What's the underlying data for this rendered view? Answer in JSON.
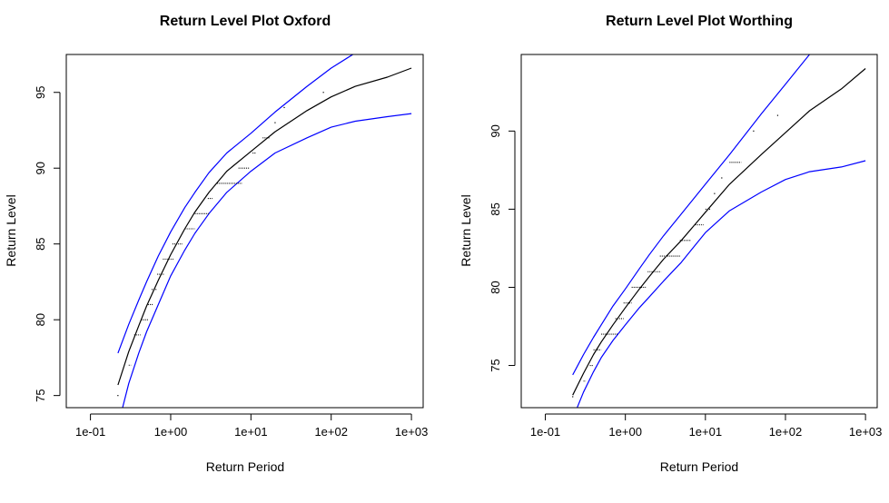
{
  "chart_data": [
    {
      "type": "line",
      "title": "Return Level Plot Oxford",
      "xlabel": "Return Period",
      "ylabel": "Return Level",
      "xscale": "log",
      "xlim": [
        0.05,
        1400
      ],
      "ylim": [
        74.2,
        97.5
      ],
      "xticks": [
        {
          "value": 0.1,
          "label": "1e-01"
        },
        {
          "value": 1,
          "label": "1e+00"
        },
        {
          "value": 10,
          "label": "1e+01"
        },
        {
          "value": 100,
          "label": "1e+02"
        },
        {
          "value": 1000,
          "label": "1e+03"
        }
      ],
      "yticks": [
        {
          "value": 75,
          "label": "75"
        },
        {
          "value": 80,
          "label": "80"
        },
        {
          "value": 85,
          "label": "85"
        },
        {
          "value": 90,
          "label": "90"
        },
        {
          "value": 95,
          "label": "95"
        }
      ],
      "series": [
        {
          "role": "estimate",
          "color": "#000000",
          "x": [
            0.22,
            0.3,
            0.4,
            0.5,
            0.7,
            1,
            1.5,
            2,
            3,
            5,
            10,
            20,
            50,
            100,
            200,
            500,
            1000
          ],
          "y": [
            75.7,
            77.9,
            79.6,
            80.9,
            82.6,
            84.3,
            86.0,
            87.1,
            88.4,
            89.8,
            91.1,
            92.4,
            93.8,
            94.7,
            95.4,
            96.0,
            96.6
          ]
        },
        {
          "role": "upper-ci",
          "color": "#0000ff",
          "x": [
            0.22,
            0.3,
            0.4,
            0.5,
            0.7,
            1,
            1.5,
            2,
            3,
            5,
            10,
            20,
            50,
            100,
            200
          ],
          "y": [
            77.8,
            79.7,
            81.3,
            82.5,
            84.2,
            85.8,
            87.4,
            88.4,
            89.7,
            91.0,
            92.3,
            93.7,
            95.4,
            96.6,
            97.6
          ]
        },
        {
          "role": "lower-ci",
          "color": "#0000ff",
          "x": [
            0.22,
            0.3,
            0.4,
            0.5,
            0.7,
            1,
            1.5,
            2,
            3,
            5,
            10,
            20,
            50,
            100,
            200,
            500,
            1000
          ],
          "y": [
            73.0,
            75.8,
            77.8,
            79.2,
            81.0,
            82.9,
            84.6,
            85.7,
            87.0,
            88.4,
            89.8,
            91.0,
            92.0,
            92.7,
            93.1,
            93.4,
            93.6
          ]
        }
      ],
      "observations": [
        {
          "x0": 0.22,
          "x1": 0.22,
          "y": 75
        },
        {
          "x0": 0.3,
          "x1": 0.32,
          "y": 77
        },
        {
          "x0": 0.35,
          "x1": 0.42,
          "y": 79
        },
        {
          "x0": 0.43,
          "x1": 0.52,
          "y": 80
        },
        {
          "x0": 0.52,
          "x1": 0.6,
          "y": 81
        },
        {
          "x0": 0.58,
          "x1": 0.68,
          "y": 82
        },
        {
          "x0": 0.68,
          "x1": 0.82,
          "y": 83
        },
        {
          "x0": 0.8,
          "x1": 1.1,
          "y": 84
        },
        {
          "x0": 1.05,
          "x1": 1.4,
          "y": 85
        },
        {
          "x0": 1.5,
          "x1": 2.0,
          "y": 86
        },
        {
          "x0": 2.0,
          "x1": 3.0,
          "y": 87
        },
        {
          "x0": 2.9,
          "x1": 3.3,
          "y": 88
        },
        {
          "x0": 3.8,
          "x1": 7.8,
          "y": 89
        },
        {
          "x0": 7.0,
          "x1": 9.5,
          "y": 90
        },
        {
          "x0": 10.5,
          "x1": 11.5,
          "y": 91
        },
        {
          "x0": 14,
          "x1": 17,
          "y": 92
        },
        {
          "x0": 20,
          "x1": 20,
          "y": 93
        },
        {
          "x0": 26,
          "x1": 26,
          "y": 94
        },
        {
          "x0": 80,
          "x1": 80,
          "y": 95
        }
      ]
    },
    {
      "type": "line",
      "title": "Return Level Plot Worthing",
      "xlabel": "Return Period",
      "ylabel": "Return Level",
      "xscale": "log",
      "xlim": [
        0.05,
        1400
      ],
      "ylim": [
        72.3,
        94.9
      ],
      "xticks": [
        {
          "value": 0.1,
          "label": "1e-01"
        },
        {
          "value": 1,
          "label": "1e+00"
        },
        {
          "value": 10,
          "label": "1e+01"
        },
        {
          "value": 100,
          "label": "1e+02"
        },
        {
          "value": 1000,
          "label": "1e+03"
        }
      ],
      "yticks": [
        {
          "value": 75,
          "label": "75"
        },
        {
          "value": 80,
          "label": "80"
        },
        {
          "value": 85,
          "label": "85"
        },
        {
          "value": 90,
          "label": "90"
        }
      ],
      "series": [
        {
          "role": "estimate",
          "color": "#000000",
          "x": [
            0.22,
            0.3,
            0.4,
            0.5,
            0.7,
            1,
            1.5,
            2,
            3,
            5,
            10,
            20,
            50,
            100,
            200,
            500,
            1000
          ],
          "y": [
            73.1,
            74.5,
            75.7,
            76.5,
            77.6,
            78.7,
            79.9,
            80.7,
            81.8,
            83.0,
            84.8,
            86.6,
            88.5,
            89.9,
            91.3,
            92.7,
            94.0
          ]
        },
        {
          "role": "upper-ci",
          "color": "#0000ff",
          "x": [
            0.22,
            0.3,
            0.4,
            0.5,
            0.7,
            1,
            1.5,
            2,
            3,
            5,
            10,
            20,
            50,
            100,
            200
          ],
          "y": [
            74.4,
            75.7,
            76.8,
            77.6,
            78.8,
            79.9,
            81.2,
            82.1,
            83.3,
            84.7,
            86.6,
            88.5,
            91.1,
            93.0,
            94.9
          ]
        },
        {
          "role": "lower-ci",
          "color": "#0000ff",
          "x": [
            0.22,
            0.3,
            0.4,
            0.5,
            0.7,
            1,
            1.5,
            2,
            3,
            5,
            10,
            20,
            50,
            100,
            200,
            500,
            1000
          ],
          "y": [
            71.6,
            73.3,
            74.6,
            75.5,
            76.6,
            77.6,
            78.7,
            79.4,
            80.4,
            81.6,
            83.5,
            84.9,
            86.1,
            86.9,
            87.4,
            87.7,
            88.1
          ]
        }
      ],
      "observations": [
        {
          "x0": 0.22,
          "x1": 0.22,
          "y": 73
        },
        {
          "x0": 0.3,
          "x1": 0.32,
          "y": 74
        },
        {
          "x0": 0.36,
          "x1": 0.4,
          "y": 75
        },
        {
          "x0": 0.4,
          "x1": 0.5,
          "y": 76
        },
        {
          "x0": 0.5,
          "x1": 0.8,
          "y": 77
        },
        {
          "x0": 0.75,
          "x1": 0.95,
          "y": 78
        },
        {
          "x0": 0.95,
          "x1": 1.2,
          "y": 79
        },
        {
          "x0": 1.2,
          "x1": 1.8,
          "y": 80
        },
        {
          "x0": 1.9,
          "x1": 2.8,
          "y": 81
        },
        {
          "x0": 2.7,
          "x1": 4.8,
          "y": 82
        },
        {
          "x0": 4.8,
          "x1": 6.5,
          "y": 83
        },
        {
          "x0": 7.5,
          "x1": 9.5,
          "y": 84
        },
        {
          "x0": 10,
          "x1": 11.5,
          "y": 85
        },
        {
          "x0": 13,
          "x1": 13,
          "y": 86
        },
        {
          "x0": 16,
          "x1": 16,
          "y": 87
        },
        {
          "x0": 20,
          "x1": 28,
          "y": 88
        },
        {
          "x0": 40,
          "x1": 40,
          "y": 90
        },
        {
          "x0": 80,
          "x1": 80,
          "y": 91
        }
      ]
    }
  ]
}
